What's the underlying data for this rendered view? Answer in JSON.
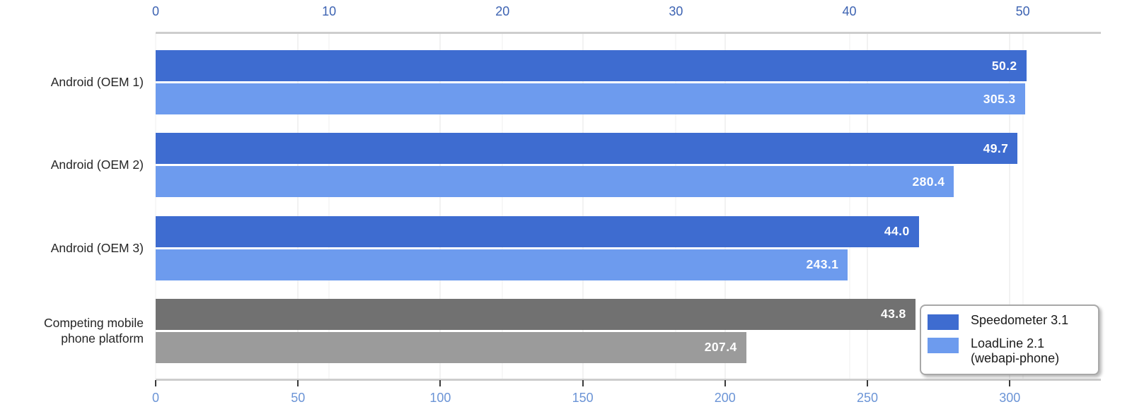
{
  "chart_data": {
    "type": "bar",
    "orientation": "horizontal",
    "background_color": "#ffffff",
    "grid": true,
    "categories": [
      [
        "Android (OEM 1)"
      ],
      [
        "Android (OEM 2)"
      ],
      [
        "Android (OEM 3)"
      ],
      [
        "Competing mobile",
        "phone platform"
      ]
    ],
    "series": [
      {
        "name": "Speedometer 3.1",
        "axis": "top",
        "values": [
          50.2,
          49.7,
          44.0,
          43.8
        ],
        "display_values": [
          "50.2",
          "49.7",
          "44.0",
          "43.8"
        ],
        "bar_colors": [
          "#3E6CD0",
          "#3E6CD0",
          "#3E6CD0",
          "#717171"
        ]
      },
      {
        "name": "LoadLine 2.1 (webapi-phone)",
        "axis": "bottom",
        "values": [
          305.3,
          280.4,
          243.1,
          207.4
        ],
        "display_values": [
          "305.3",
          "280.4",
          "243.1",
          "207.4"
        ],
        "bar_colors": [
          "#6D9BEE",
          "#6D9BEE",
          "#6D9BEE",
          "#9B9B9B"
        ]
      }
    ],
    "top_axis": {
      "tick_values": [
        0,
        10,
        20,
        30,
        40,
        50
      ],
      "tick_labels": [
        "0",
        "10",
        "20",
        "30",
        "40",
        "50"
      ],
      "range": [
        0,
        54.5
      ],
      "label_color": "#3D63B2",
      "gridline_color": "#f7f7f7"
    },
    "bottom_axis": {
      "tick_values": [
        0,
        50,
        100,
        150,
        200,
        250,
        300
      ],
      "tick_labels": [
        "0",
        "50",
        "100",
        "150",
        "200",
        "250",
        "300"
      ],
      "range": [
        0,
        332
      ],
      "label_color": "#6B94D6",
      "gridline_color": "#f2f2f2"
    },
    "value_label_color": "#ffffff",
    "legend": {
      "position": "bottom-right",
      "items": [
        {
          "lines": [
            "Speedometer 3.1"
          ],
          "color": "#3E6CD0"
        },
        {
          "lines": [
            "LoadLine 2.1",
            "(webapi-phone)"
          ],
          "color": "#6D9BEE"
        }
      ]
    }
  }
}
